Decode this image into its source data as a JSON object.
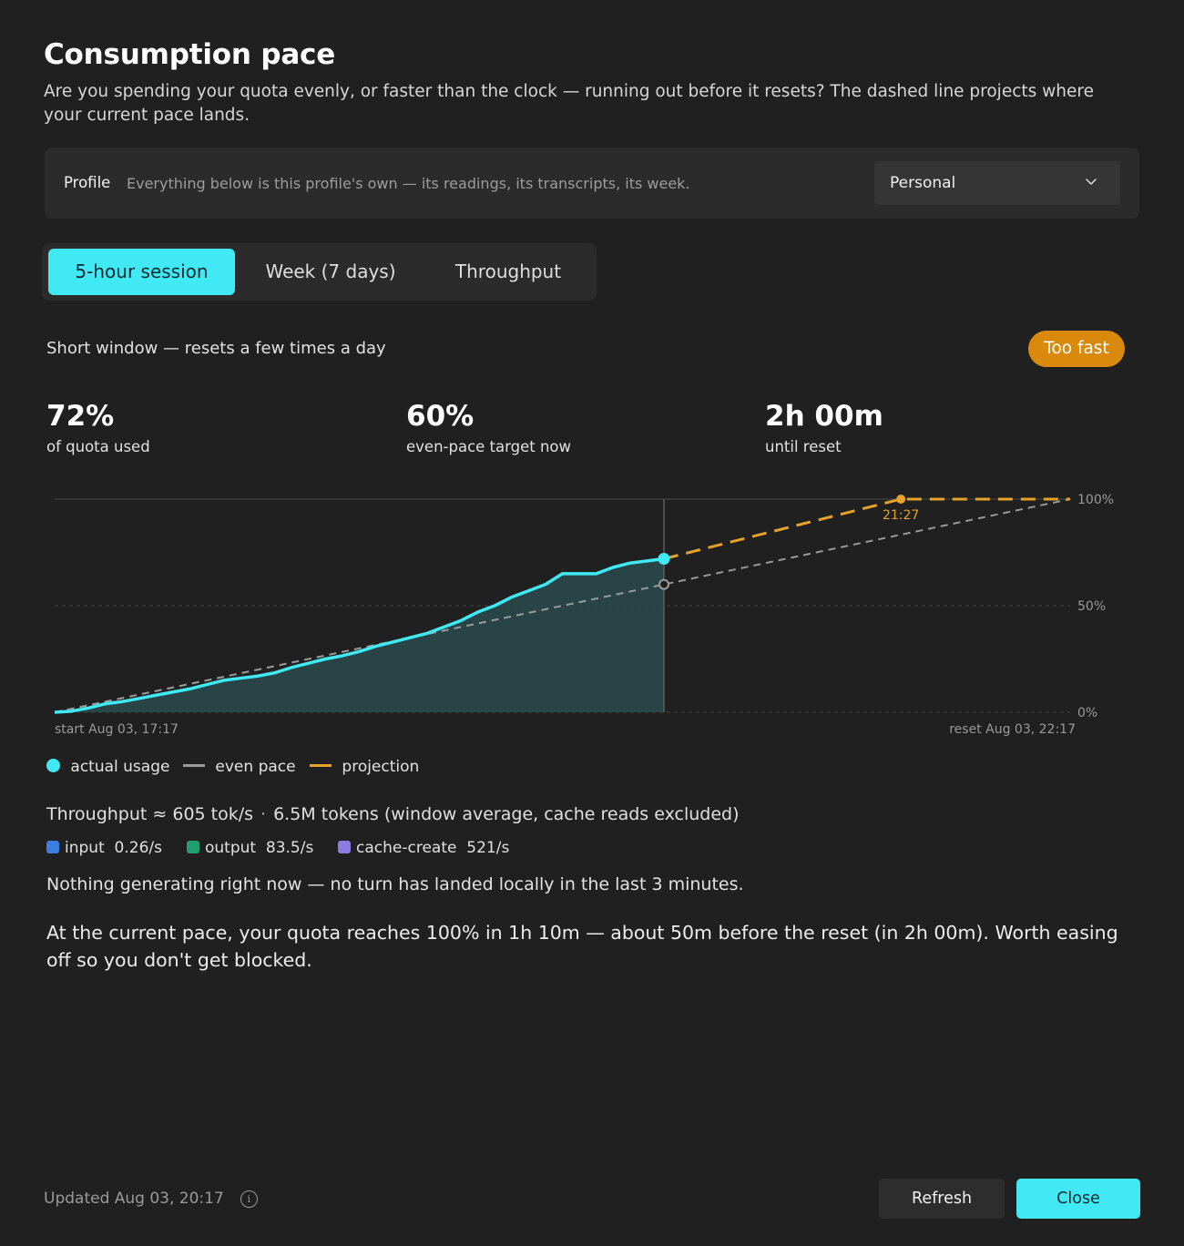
{
  "header": {
    "title": "Consumption pace",
    "subtitle": "Are you spending your quota evenly, or faster than the clock — running out before it resets? The dashed line projects where your current pace lands."
  },
  "profile": {
    "label": "Profile",
    "description": "Everything below is this profile's own — its readings, its transcripts, its week.",
    "selected": "Personal",
    "icon": "chevron-down-icon"
  },
  "tabs": [
    {
      "label": "5-hour session",
      "active": true
    },
    {
      "label": "Week (7 days)",
      "active": false
    },
    {
      "label": "Throughput",
      "active": false
    }
  ],
  "window": {
    "description": "Short window — resets a few times a day",
    "status_badge": "Too fast",
    "status_color": "#d98a0c"
  },
  "stats": [
    {
      "value": "72%",
      "label": "of quota used"
    },
    {
      "value": "60%",
      "label": "even-pace target now"
    },
    {
      "value": "2h 00m",
      "label": "until reset"
    }
  ],
  "chart_data": {
    "type": "area",
    "x_unit": "minutes since window start",
    "xlim": [
      0,
      300
    ],
    "ylim": [
      0,
      100
    ],
    "yticks": [
      "0%",
      "50%",
      "100%"
    ],
    "x_start_label": "start Aug 03, 17:17",
    "x_end_label": "reset Aug 03, 22:17",
    "now_x": 180,
    "series": [
      {
        "name": "actual usage",
        "color": "#40e9f4",
        "points": [
          [
            0,
            0
          ],
          [
            5,
            0.5
          ],
          [
            10,
            2
          ],
          [
            15,
            4
          ],
          [
            20,
            5
          ],
          [
            25,
            6.5
          ],
          [
            30,
            8
          ],
          [
            35,
            9.5
          ],
          [
            40,
            11
          ],
          [
            45,
            13
          ],
          [
            50,
            15
          ],
          [
            55,
            16
          ],
          [
            60,
            17
          ],
          [
            65,
            18.5
          ],
          [
            70,
            21
          ],
          [
            75,
            23
          ],
          [
            80,
            25
          ],
          [
            85,
            26.5
          ],
          [
            90,
            28.5
          ],
          [
            95,
            31
          ],
          [
            100,
            33
          ],
          [
            105,
            35
          ],
          [
            110,
            37
          ],
          [
            115,
            40
          ],
          [
            120,
            43
          ],
          [
            125,
            47
          ],
          [
            130,
            50
          ],
          [
            135,
            54
          ],
          [
            140,
            57
          ],
          [
            145,
            60
          ],
          [
            150,
            65
          ],
          [
            155,
            65
          ],
          [
            160,
            65
          ],
          [
            165,
            68
          ],
          [
            170,
            70
          ],
          [
            175,
            71
          ],
          [
            180,
            72
          ]
        ]
      },
      {
        "name": "even pace",
        "color": "#9a9a9a",
        "points": [
          [
            0,
            0
          ],
          [
            300,
            100
          ]
        ]
      },
      {
        "name": "projection",
        "color": "#e6a22a",
        "points": [
          [
            180,
            72
          ],
          [
            250,
            100
          ],
          [
            300,
            100
          ]
        ]
      }
    ],
    "now_marker_actual": 72,
    "now_marker_target": 60,
    "projection_hit_label": "21:27",
    "projection_hit_x": 250
  },
  "legend": [
    {
      "label": "actual usage",
      "kind": "dot",
      "color": "#40e9f4"
    },
    {
      "label": "even pace",
      "kind": "line",
      "color": "#9a9a9a"
    },
    {
      "label": "projection",
      "kind": "line",
      "color": "#e6a22a"
    }
  ],
  "throughput": {
    "rate": "Throughput ≈ 605 tok/s",
    "separator": "·",
    "tokens": "6.5M tokens (window average, cache reads excluded)",
    "breakdown": [
      {
        "name": "input",
        "value": "0.26/s",
        "color": "#3a7ee0"
      },
      {
        "name": "output",
        "value": "83.5/s",
        "color": "#1f9e6e"
      },
      {
        "name": "cache-create",
        "value": "521/s",
        "color": "#8f7be0"
      }
    ]
  },
  "idle_note": "Nothing generating right now — no turn has landed locally in the last 3 minutes.",
  "verdict": "At the current pace, your quota reaches 100% in 1h 10m — about 50m before the reset (in 2h 00m). Worth easing off so you don't get blocked.",
  "footer": {
    "updated": "Updated Aug 03, 20:17",
    "info_icon": "info-icon",
    "refresh_label": "Refresh",
    "close_label": "Close"
  }
}
